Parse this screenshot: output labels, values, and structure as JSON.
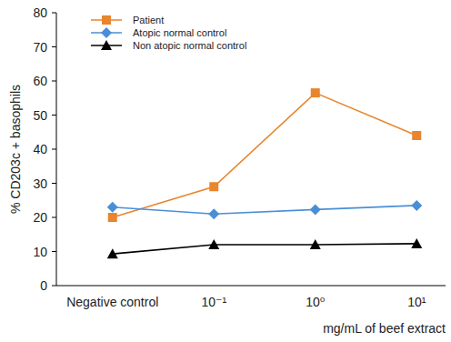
{
  "chart_data": {
    "type": "line",
    "y_label": "% CD203c + basophils",
    "x_label": "mg/mL of beef extract",
    "categories": [
      "Negative control",
      "10⁻¹",
      "10⁰",
      "10¹"
    ],
    "series": [
      {
        "name": "Patient",
        "color": "#e8852d",
        "marker": "square",
        "values": [
          20,
          29,
          56.5,
          44
        ]
      },
      {
        "name": "Atopic normal control",
        "color": "#4a8fd6",
        "marker": "diamond",
        "values": [
          23,
          21,
          22.3,
          23.5
        ]
      },
      {
        "name": "Non atopic normal control",
        "color": "#000000",
        "marker": "triangle",
        "values": [
          9.3,
          12,
          12,
          12.3
        ]
      }
    ],
    "ylim": [
      0,
      80
    ],
    "yticks": [
      0,
      10,
      20,
      30,
      40,
      50,
      60,
      70,
      80
    ],
    "grid": false,
    "legend": "upper left"
  }
}
